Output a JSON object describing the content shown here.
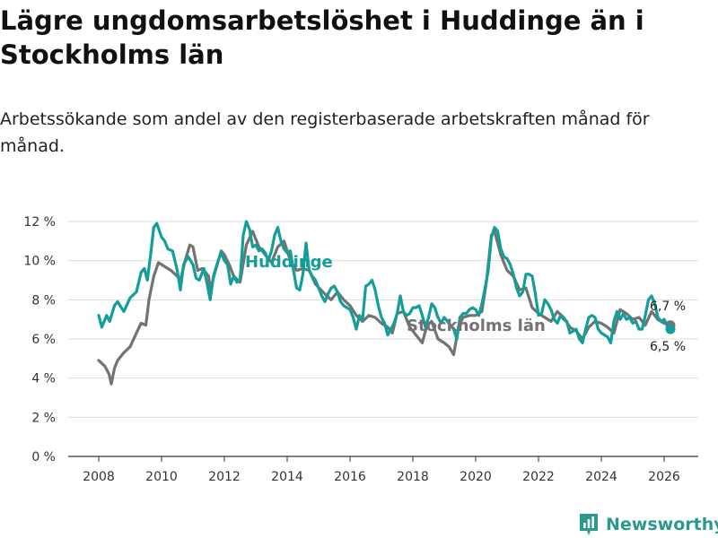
{
  "title": "Lägre ungdomsarbetslöshet i Huddinge än i Stockholms län",
  "subtitle": "Arbetssökande som andel av den registerbaserade arbetskraften månad för månad.",
  "brand": {
    "name": "Newsworthy",
    "color": "#2a9a8e"
  },
  "chart_data": {
    "type": "line",
    "title": "Lägre ungdomsarbetslöshet i Huddinge än i Stockholms län",
    "xlabel": "",
    "ylabel": "",
    "xlim": [
      2007.5,
      2026.8
    ],
    "ylim": [
      0,
      12
    ],
    "grid": true,
    "yticks": [
      0,
      2,
      4,
      6,
      8,
      10,
      12
    ],
    "ytick_labels": [
      "0 %",
      "2 %",
      "4 %",
      "6 %",
      "8 %",
      "10 %",
      "12 %"
    ],
    "xticks": [
      2008,
      2010,
      2012,
      2014,
      2016,
      2018,
      2020,
      2022,
      2024,
      2026
    ],
    "xtick_labels": [
      "2008",
      "2010",
      "2012",
      "2014",
      "2016",
      "2018",
      "2020",
      "2022",
      "2024",
      "2026"
    ],
    "series": [
      {
        "name": "Stockholms län",
        "color": "#737373",
        "end_label": "6,7 %",
        "points": [
          [
            2008.0,
            4.9
          ],
          [
            2008.2,
            4.6
          ],
          [
            2008.33,
            4.2
          ],
          [
            2008.4,
            3.7
          ],
          [
            2008.5,
            4.5
          ],
          [
            2008.6,
            4.9
          ],
          [
            2008.8,
            5.3
          ],
          [
            2009.0,
            5.6
          ],
          [
            2009.2,
            6.3
          ],
          [
            2009.35,
            6.8
          ],
          [
            2009.5,
            6.7
          ],
          [
            2009.6,
            8.0
          ],
          [
            2009.75,
            9.2
          ],
          [
            2009.9,
            9.9
          ],
          [
            2010.1,
            9.7
          ],
          [
            2010.3,
            9.5
          ],
          [
            2010.5,
            9.2
          ],
          [
            2010.6,
            9.0
          ],
          [
            2010.75,
            10.0
          ],
          [
            2010.9,
            10.8
          ],
          [
            2011.0,
            10.7
          ],
          [
            2011.15,
            9.5
          ],
          [
            2011.3,
            9.6
          ],
          [
            2011.5,
            9.2
          ],
          [
            2011.55,
            8.5
          ],
          [
            2011.7,
            9.4
          ],
          [
            2011.9,
            10.5
          ],
          [
            2012.0,
            10.3
          ],
          [
            2012.15,
            9.8
          ],
          [
            2012.3,
            9.2
          ],
          [
            2012.5,
            8.9
          ],
          [
            2012.7,
            10.8
          ],
          [
            2012.9,
            11.5
          ],
          [
            2013.1,
            10.7
          ],
          [
            2013.3,
            10.3
          ],
          [
            2013.5,
            9.9
          ],
          [
            2013.7,
            10.7
          ],
          [
            2013.9,
            11.0
          ],
          [
            2014.1,
            10.0
          ],
          [
            2014.3,
            9.5
          ],
          [
            2014.5,
            9.6
          ],
          [
            2014.7,
            9.5
          ],
          [
            2014.9,
            8.8
          ],
          [
            2015.2,
            8.3
          ],
          [
            2015.4,
            8.0
          ],
          [
            2015.6,
            8.4
          ],
          [
            2015.8,
            8.0
          ],
          [
            2016.0,
            7.7
          ],
          [
            2016.2,
            7.2
          ],
          [
            2016.4,
            6.9
          ],
          [
            2016.6,
            7.2
          ],
          [
            2016.8,
            7.1
          ],
          [
            2017.0,
            6.8
          ],
          [
            2017.2,
            6.6
          ],
          [
            2017.35,
            6.3
          ],
          [
            2017.5,
            7.3
          ],
          [
            2017.7,
            7.4
          ],
          [
            2017.9,
            6.6
          ],
          [
            2018.1,
            6.2
          ],
          [
            2018.3,
            5.8
          ],
          [
            2018.45,
            6.7
          ],
          [
            2018.6,
            6.9
          ],
          [
            2018.8,
            6.0
          ],
          [
            2019.0,
            5.8
          ],
          [
            2019.15,
            5.6
          ],
          [
            2019.3,
            5.2
          ],
          [
            2019.45,
            6.6
          ],
          [
            2019.6,
            7.1
          ],
          [
            2019.8,
            7.2
          ],
          [
            2020.0,
            7.2
          ],
          [
            2020.2,
            7.4
          ],
          [
            2020.35,
            9.0
          ],
          [
            2020.5,
            11.3
          ],
          [
            2020.6,
            11.5
          ],
          [
            2020.8,
            10.3
          ],
          [
            2021.0,
            9.5
          ],
          [
            2021.2,
            9.2
          ],
          [
            2021.4,
            8.5
          ],
          [
            2021.6,
            8.6
          ],
          [
            2021.8,
            7.6
          ],
          [
            2022.0,
            7.3
          ],
          [
            2022.2,
            7.1
          ],
          [
            2022.4,
            6.9
          ],
          [
            2022.6,
            7.4
          ],
          [
            2022.8,
            7.1
          ],
          [
            2023.0,
            6.6
          ],
          [
            2023.2,
            6.4
          ],
          [
            2023.4,
            6.0
          ],
          [
            2023.6,
            6.6
          ],
          [
            2023.8,
            6.9
          ],
          [
            2024.0,
            6.8
          ],
          [
            2024.2,
            6.6
          ],
          [
            2024.4,
            6.3
          ],
          [
            2024.6,
            7.5
          ],
          [
            2024.8,
            7.3
          ],
          [
            2025.0,
            7.0
          ],
          [
            2025.2,
            7.1
          ],
          [
            2025.4,
            6.7
          ],
          [
            2025.6,
            7.4
          ],
          [
            2025.8,
            7.0
          ],
          [
            2026.0,
            6.8
          ],
          [
            2026.2,
            6.7
          ]
        ]
      },
      {
        "name": "Huddinge",
        "color": "#139e99",
        "end_label": "6,5 %",
        "points": [
          [
            2008.0,
            7.2
          ],
          [
            2008.1,
            6.6
          ],
          [
            2008.25,
            7.2
          ],
          [
            2008.35,
            6.9
          ],
          [
            2008.5,
            7.7
          ],
          [
            2008.6,
            7.9
          ],
          [
            2008.8,
            7.4
          ],
          [
            2009.0,
            8.1
          ],
          [
            2009.2,
            8.4
          ],
          [
            2009.35,
            9.4
          ],
          [
            2009.45,
            9.6
          ],
          [
            2009.55,
            9.0
          ],
          [
            2009.65,
            10.3
          ],
          [
            2009.75,
            11.7
          ],
          [
            2009.85,
            11.9
          ],
          [
            2010.0,
            11.2
          ],
          [
            2010.1,
            11.0
          ],
          [
            2010.2,
            10.6
          ],
          [
            2010.35,
            10.5
          ],
          [
            2010.5,
            9.5
          ],
          [
            2010.6,
            8.5
          ],
          [
            2010.7,
            9.8
          ],
          [
            2010.85,
            10.2
          ],
          [
            2011.0,
            9.8
          ],
          [
            2011.1,
            9.1
          ],
          [
            2011.2,
            9.0
          ],
          [
            2011.35,
            9.6
          ],
          [
            2011.45,
            8.8
          ],
          [
            2011.55,
            8.0
          ],
          [
            2011.65,
            9.2
          ],
          [
            2011.8,
            10.0
          ],
          [
            2011.9,
            10.4
          ],
          [
            2012.0,
            10.0
          ],
          [
            2012.1,
            9.8
          ],
          [
            2012.2,
            8.8
          ],
          [
            2012.3,
            9.2
          ],
          [
            2012.4,
            8.9
          ],
          [
            2012.5,
            9.0
          ],
          [
            2012.6,
            11.3
          ],
          [
            2012.7,
            12.0
          ],
          [
            2012.8,
            11.6
          ],
          [
            2012.9,
            10.7
          ],
          [
            2013.0,
            10.8
          ],
          [
            2013.1,
            10.5
          ],
          [
            2013.2,
            10.6
          ],
          [
            2013.3,
            10.4
          ],
          [
            2013.4,
            10.0
          ],
          [
            2013.5,
            10.5
          ],
          [
            2013.6,
            11.3
          ],
          [
            2013.7,
            11.7
          ],
          [
            2013.8,
            11.0
          ],
          [
            2013.9,
            10.6
          ],
          [
            2014.0,
            10.4
          ],
          [
            2014.1,
            10.5
          ],
          [
            2014.2,
            9.5
          ],
          [
            2014.3,
            8.6
          ],
          [
            2014.4,
            8.5
          ],
          [
            2014.5,
            9.3
          ],
          [
            2014.6,
            10.9
          ],
          [
            2014.7,
            9.5
          ],
          [
            2014.8,
            9.2
          ],
          [
            2014.9,
            9.0
          ],
          [
            2015.0,
            8.6
          ],
          [
            2015.1,
            8.2
          ],
          [
            2015.2,
            7.9
          ],
          [
            2015.3,
            8.3
          ],
          [
            2015.4,
            8.6
          ],
          [
            2015.5,
            8.7
          ],
          [
            2015.6,
            8.4
          ],
          [
            2015.7,
            7.9
          ],
          [
            2015.8,
            7.7
          ],
          [
            2016.0,
            7.5
          ],
          [
            2016.1,
            7.1
          ],
          [
            2016.2,
            6.5
          ],
          [
            2016.3,
            7.2
          ],
          [
            2016.4,
            7.0
          ],
          [
            2016.5,
            8.7
          ],
          [
            2016.6,
            8.8
          ],
          [
            2016.7,
            9.0
          ],
          [
            2016.8,
            8.5
          ],
          [
            2016.9,
            7.7
          ],
          [
            2017.0,
            7.1
          ],
          [
            2017.1,
            6.8
          ],
          [
            2017.2,
            6.2
          ],
          [
            2017.3,
            6.5
          ],
          [
            2017.4,
            6.8
          ],
          [
            2017.5,
            7.3
          ],
          [
            2017.6,
            8.2
          ],
          [
            2017.7,
            7.4
          ],
          [
            2017.8,
            7.2
          ],
          [
            2017.9,
            7.3
          ],
          [
            2018.0,
            7.6
          ],
          [
            2018.1,
            7.6
          ],
          [
            2018.2,
            7.7
          ],
          [
            2018.3,
            7.2
          ],
          [
            2018.4,
            6.6
          ],
          [
            2018.5,
            7.1
          ],
          [
            2018.6,
            7.8
          ],
          [
            2018.7,
            7.6
          ],
          [
            2018.8,
            7.1
          ],
          [
            2018.9,
            6.8
          ],
          [
            2019.0,
            7.1
          ],
          [
            2019.1,
            6.9
          ],
          [
            2019.2,
            6.7
          ],
          [
            2019.3,
            6.5
          ],
          [
            2019.4,
            6.0
          ],
          [
            2019.5,
            7.1
          ],
          [
            2019.6,
            7.3
          ],
          [
            2019.7,
            7.3
          ],
          [
            2019.8,
            7.5
          ],
          [
            2019.9,
            7.6
          ],
          [
            2020.0,
            7.5
          ],
          [
            2020.1,
            7.2
          ],
          [
            2020.2,
            7.8
          ],
          [
            2020.3,
            8.6
          ],
          [
            2020.4,
            9.5
          ],
          [
            2020.5,
            11.2
          ],
          [
            2020.6,
            11.7
          ],
          [
            2020.7,
            11.5
          ],
          [
            2020.8,
            10.6
          ],
          [
            2020.9,
            10.2
          ],
          [
            2021.0,
            10.1
          ],
          [
            2021.1,
            9.8
          ],
          [
            2021.2,
            9.3
          ],
          [
            2021.3,
            8.6
          ],
          [
            2021.4,
            8.2
          ],
          [
            2021.5,
            8.4
          ],
          [
            2021.6,
            9.3
          ],
          [
            2021.7,
            9.3
          ],
          [
            2021.8,
            9.2
          ],
          [
            2021.9,
            8.3
          ],
          [
            2022.0,
            7.2
          ],
          [
            2022.1,
            7.3
          ],
          [
            2022.2,
            8.0
          ],
          [
            2022.3,
            7.8
          ],
          [
            2022.4,
            7.5
          ],
          [
            2022.5,
            7.0
          ],
          [
            2022.6,
            6.8
          ],
          [
            2022.7,
            7.2
          ],
          [
            2022.8,
            7.0
          ],
          [
            2022.9,
            6.9
          ],
          [
            2023.0,
            6.3
          ],
          [
            2023.1,
            6.4
          ],
          [
            2023.2,
            6.5
          ],
          [
            2023.3,
            6.0
          ],
          [
            2023.4,
            5.8
          ],
          [
            2023.5,
            6.5
          ],
          [
            2023.6,
            7.1
          ],
          [
            2023.7,
            7.2
          ],
          [
            2023.8,
            7.1
          ],
          [
            2023.9,
            6.5
          ],
          [
            2024.0,
            6.3
          ],
          [
            2024.1,
            6.2
          ],
          [
            2024.2,
            6.1
          ],
          [
            2024.3,
            5.8
          ],
          [
            2024.4,
            6.9
          ],
          [
            2024.5,
            7.4
          ],
          [
            2024.6,
            7.0
          ],
          [
            2024.7,
            7.3
          ],
          [
            2024.8,
            7.0
          ],
          [
            2024.9,
            7.1
          ],
          [
            2025.0,
            6.8
          ],
          [
            2025.1,
            6.9
          ],
          [
            2025.2,
            6.5
          ],
          [
            2025.3,
            6.5
          ],
          [
            2025.4,
            7.2
          ],
          [
            2025.5,
            8.0
          ],
          [
            2025.6,
            8.2
          ],
          [
            2025.7,
            7.8
          ],
          [
            2025.8,
            7.1
          ],
          [
            2025.9,
            6.9
          ],
          [
            2026.0,
            7.0
          ],
          [
            2026.1,
            6.7
          ],
          [
            2026.2,
            6.5
          ]
        ]
      }
    ],
    "annotations": [
      {
        "series": "Huddinge",
        "text": "Huddinge"
      },
      {
        "series": "Stockholms län",
        "text": "Stockholms län"
      }
    ]
  }
}
